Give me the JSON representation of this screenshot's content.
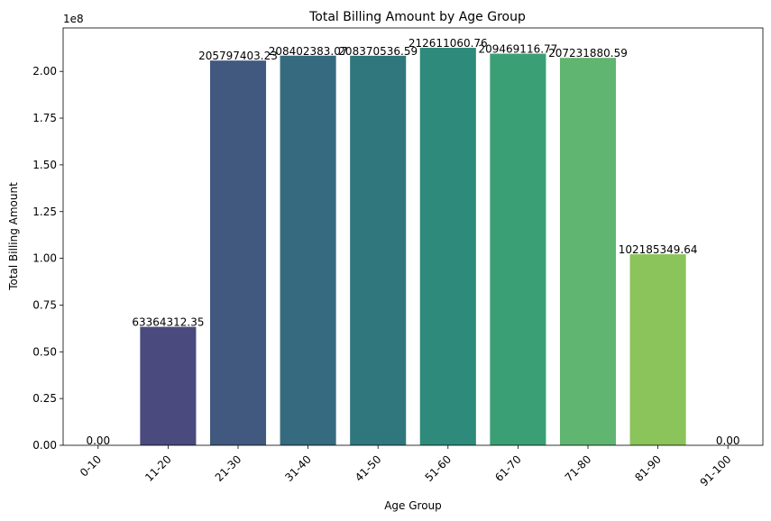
{
  "chart_data": {
    "type": "bar",
    "title": "Total Billing Amount by Age Group",
    "xlabel": "Age Group",
    "ylabel": "Total Billing Amount",
    "offset_label": "1e8",
    "categories": [
      "0-10",
      "11-20",
      "21-30",
      "31-40",
      "41-50",
      "51-60",
      "61-70",
      "71-80",
      "81-90",
      "91-100"
    ],
    "values": [
      0,
      63364312.35,
      205797403.23,
      208402383.07,
      208370536.59,
      212611060.76,
      209469116.77,
      207231880.59,
      102185349.64,
      0
    ],
    "value_labels": [
      "0.00",
      "63364312.35",
      "205797403.23",
      "208402383.07",
      "208370536.59",
      "212611060.76",
      "209469116.77",
      "207231880.59",
      "102185349.64",
      "0.00"
    ],
    "colors": [
      "#472d7b",
      "#4b4a7f",
      "#41597f",
      "#366a7f",
      "#2f777d",
      "#2e8a7a",
      "#3b9f76",
      "#60b571",
      "#8ac45a",
      "#a7d24a"
    ],
    "ylim": [
      0,
      223241613.8
    ],
    "yticks": [
      0,
      25000000,
      50000000,
      75000000,
      100000000,
      125000000,
      150000000,
      175000000,
      200000000
    ],
    "ytick_labels": [
      "0.00",
      "0.25",
      "0.50",
      "0.75",
      "1.00",
      "1.25",
      "1.50",
      "1.75",
      "2.00"
    ],
    "grid": false,
    "legend": "none"
  }
}
